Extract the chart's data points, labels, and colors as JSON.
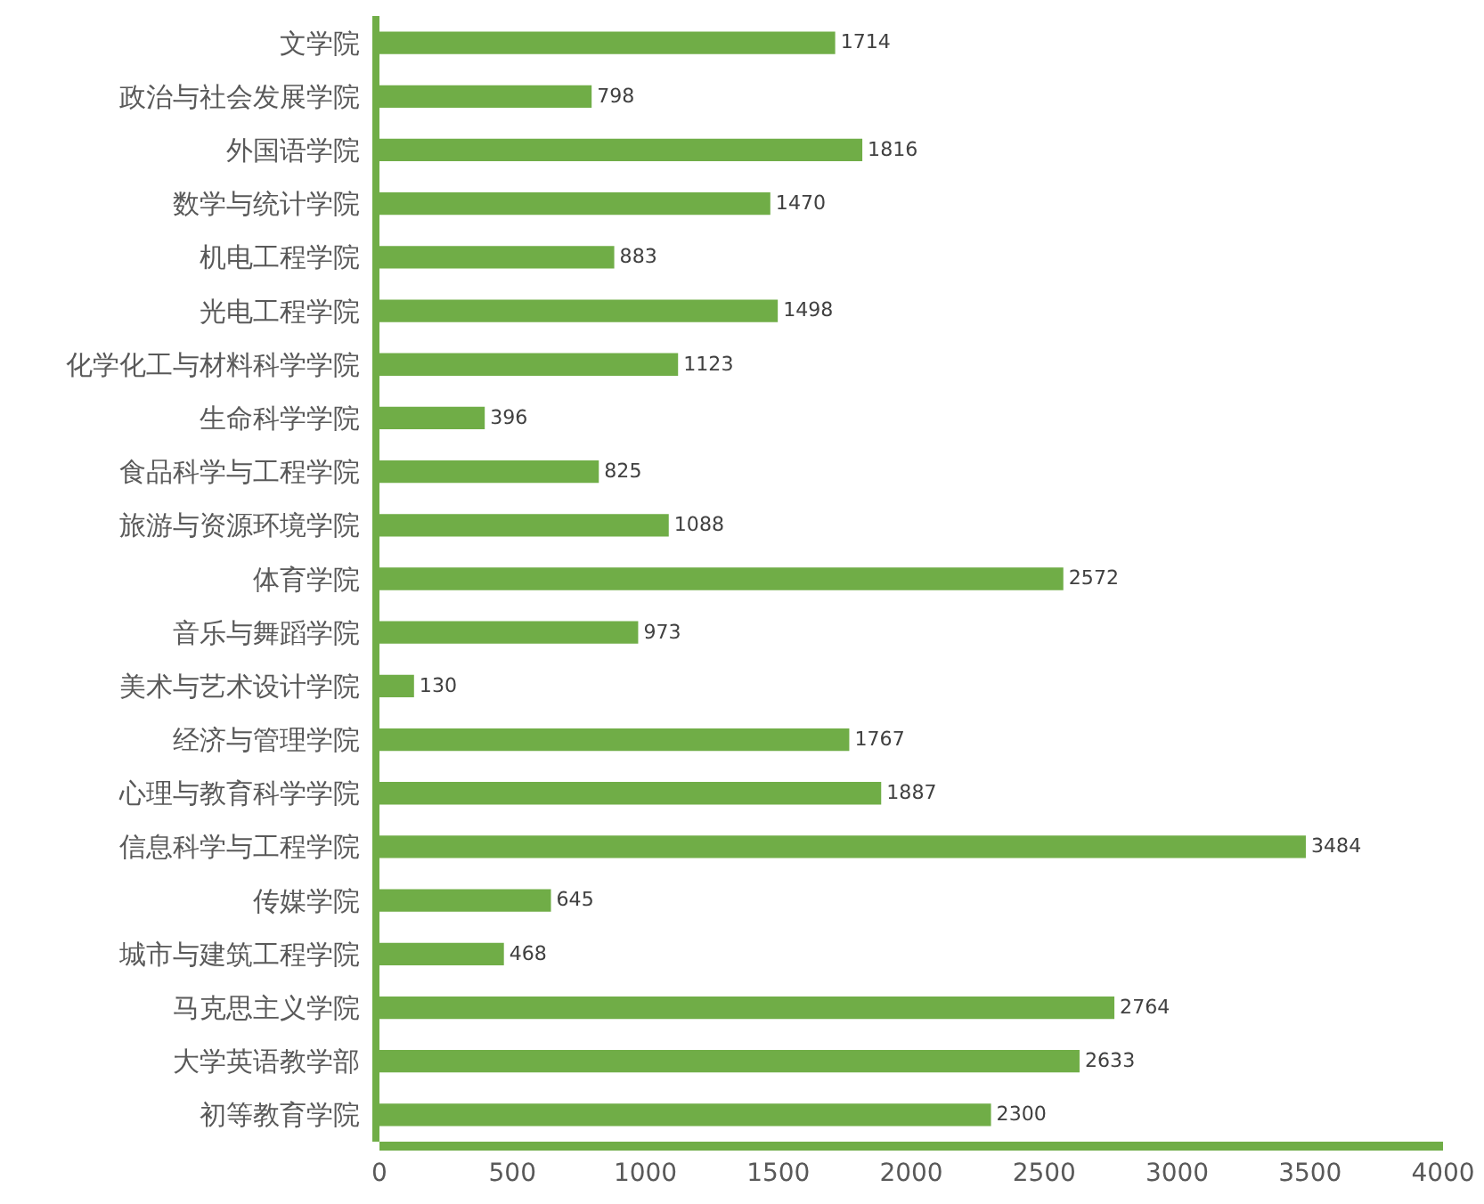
{
  "chart_data": {
    "type": "bar",
    "orientation": "horizontal",
    "categories": [
      "文学院",
      "政治与社会发展学院",
      "外国语学院",
      "数学与统计学院",
      "机电工程学院",
      "光电工程学院",
      "化学化工与材料科学学院",
      "生命科学学院",
      "食品科学与工程学院",
      "旅游与资源环境学院",
      "体育学院",
      "音乐与舞蹈学院",
      "美术与艺术设计学院",
      "经济与管理学院",
      "心理与教育科学学院",
      "信息科学与工程学院",
      "传媒学院",
      "城市与建筑工程学院",
      "马克思主义学院",
      "大学英语教学部",
      "初等教育学院"
    ],
    "values": [
      1714,
      798,
      1816,
      1470,
      883,
      1498,
      1123,
      396,
      825,
      1088,
      2572,
      973,
      130,
      1767,
      1887,
      3484,
      645,
      468,
      2764,
      2633,
      2300
    ],
    "color": "#70ad47",
    "xlim": [
      0,
      4000
    ],
    "xticks": [
      0,
      500,
      1000,
      1500,
      2000,
      2500,
      3000,
      3500,
      4000
    ],
    "data_labels": true,
    "grid": false,
    "legend": false
  }
}
